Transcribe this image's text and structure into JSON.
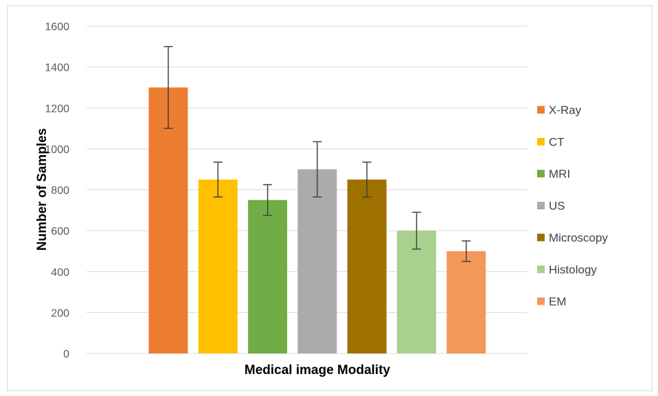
{
  "chart_data": {
    "type": "bar",
    "title": "",
    "xlabel": "Medical image Modality",
    "ylabel": "Number of Samples",
    "ylim": [
      0,
      1600
    ],
    "yticks": [
      0,
      200,
      400,
      600,
      800,
      1000,
      1200,
      1400,
      1600
    ],
    "grid": true,
    "legend_position": "right",
    "series": [
      {
        "name": "X-Ray",
        "value": 1300,
        "error_low": 1100,
        "error_high": 1500,
        "color": "#ED7D31"
      },
      {
        "name": "CT",
        "value": 850,
        "error_low": 765,
        "error_high": 935,
        "color": "#FFC000"
      },
      {
        "name": "MRI",
        "value": 750,
        "error_low": 675,
        "error_high": 825,
        "color": "#70AD47"
      },
      {
        "name": "US",
        "value": 900,
        "error_low": 765,
        "error_high": 1035,
        "color": "#ADAAAA"
      },
      {
        "name": "Microscopy",
        "value": 850,
        "error_low": 765,
        "error_high": 935,
        "color": "#9E7000"
      },
      {
        "name": "Histology",
        "value": 600,
        "error_low": 510,
        "error_high": 690,
        "color": "#A9D18E"
      },
      {
        "name": "EM",
        "value": 500,
        "error_low": 450,
        "error_high": 550,
        "color": "#F4985A"
      }
    ],
    "colors": {
      "grid": "#d9d9d9",
      "error_bar": "#404040",
      "axis_line": "#d9d9d9"
    }
  }
}
